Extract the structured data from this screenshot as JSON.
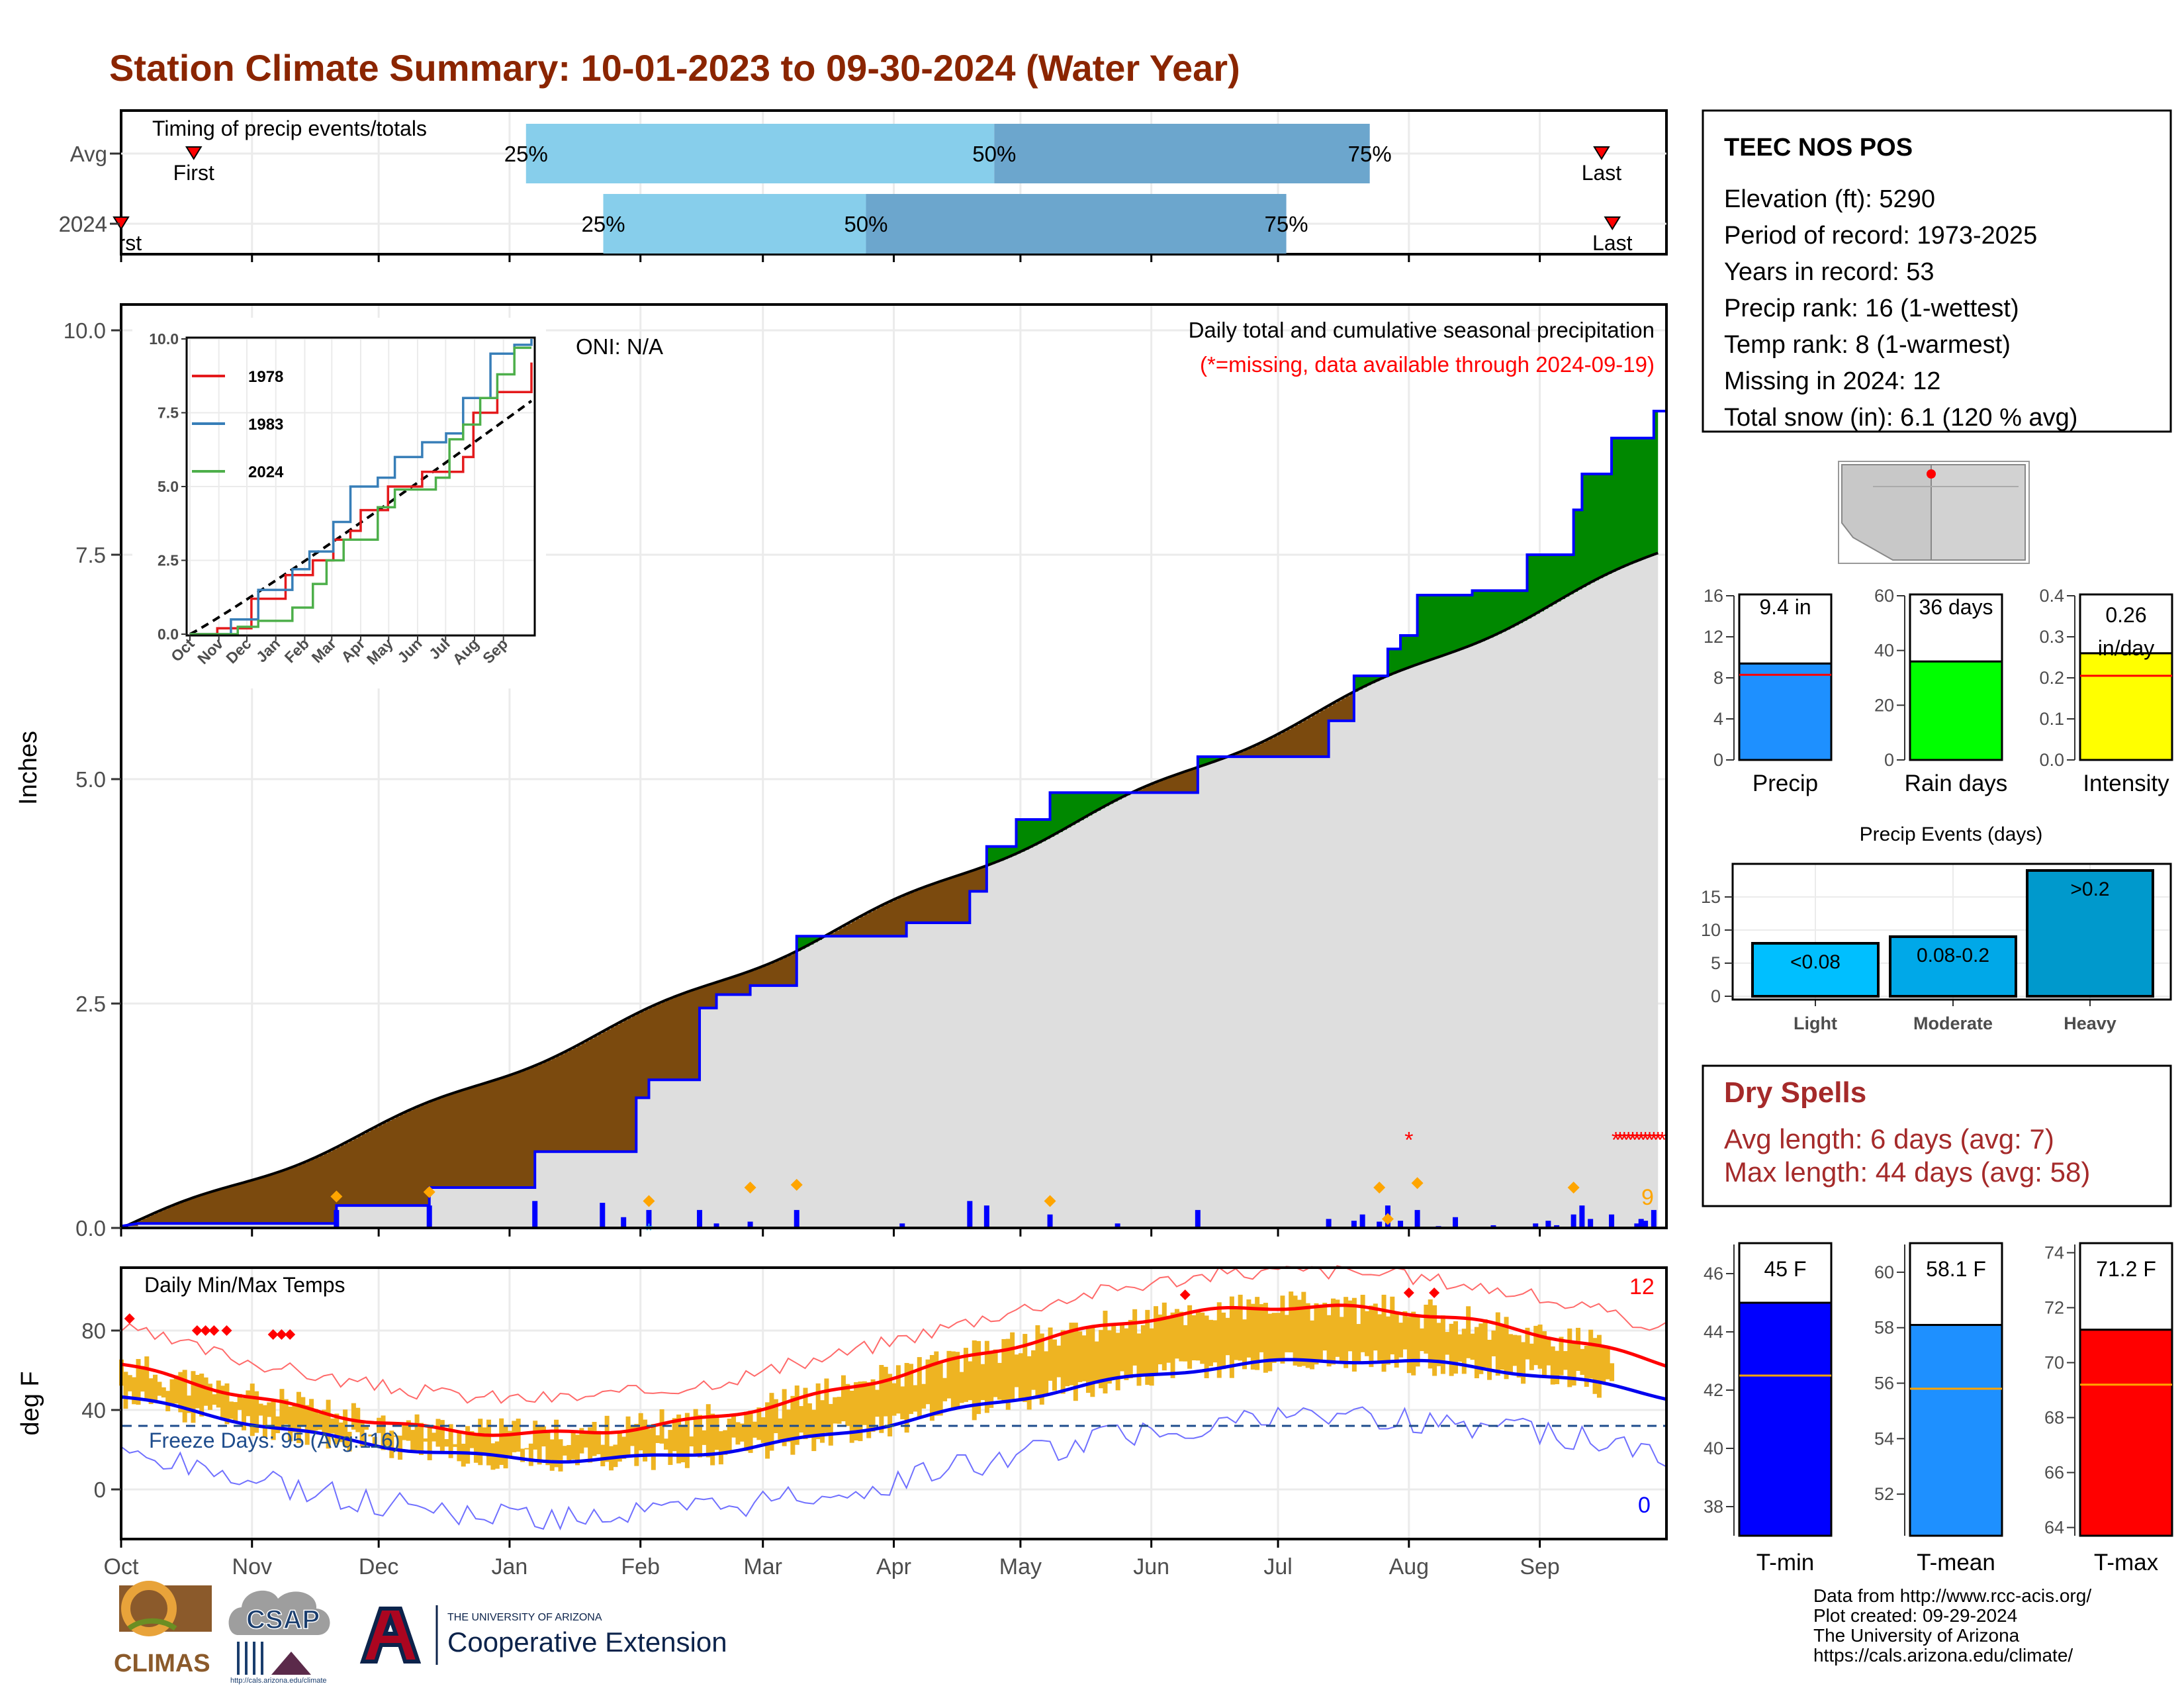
{
  "title": "Station Climate Summary: 10-01-2023 to 09-30-2024 (Water Year)",
  "colors": {
    "title": "#8B2500",
    "dark_red": "#A52A2A",
    "red": "#FF0000",
    "light_blue": "#87CEEB",
    "steel_blue": "#6CA6CD",
    "green": "#008800",
    "brown": "#7B4A0E",
    "gray_fill": "#DEDEDE",
    "blue": "#0000FF",
    "orange": "#FFA500",
    "gold": "#EEB422",
    "navy": "#1E4C8C"
  },
  "timing": {
    "label": "Timing of precip events/totals",
    "rows": [
      {
        "name": "Avg",
        "first_label": "First",
        "last_label": "Last",
        "first": 0.047,
        "p25": 0.262,
        "p50": 0.565,
        "p75": 0.808,
        "last": 0.958,
        "p25_label": "25%",
        "p50_label": "50%",
        "p75_label": "75%"
      },
      {
        "name": "2024",
        "first_label": "First",
        "last_label": "Last",
        "first": 0.0,
        "p25": 0.312,
        "p50": 0.482,
        "p75": 0.754,
        "last": 0.965,
        "p25_label": "25%",
        "p50_label": "50%",
        "p75_label": "75%"
      }
    ]
  },
  "main_chart": {
    "annotation_title": "Daily total and cumulative seasonal precipitation",
    "annotation_missing": "(*=missing, data available through 2024-09-19)",
    "oni": "ONI: N/A",
    "missing_count": "9",
    "ylabel": "Inches",
    "yticks": [
      "0.0",
      "2.5",
      "5.0",
      "7.5",
      "10.0"
    ]
  },
  "temp_chart": {
    "title": "Daily Min/Max Temps",
    "ylabel": "deg F",
    "yticks": [
      "0",
      "40",
      "80"
    ],
    "freeze": "Freeze Days: 95 (Avg:116)",
    "record_high_count": "12",
    "record_low_count": "0"
  },
  "months": [
    "Oct",
    "Nov",
    "Dec",
    "Jan",
    "Feb",
    "Mar",
    "Apr",
    "May",
    "Jun",
    "Jul",
    "Aug",
    "Sep"
  ],
  "station": {
    "name": "TEEC NOS POS",
    "lines": [
      "Elevation (ft): 5290",
      "Period of record: 1973-2025",
      "Years in record: 53",
      "Precip rank: 16 (1-wettest)",
      "Temp rank: 8 (1-warmest)",
      "Missing in 2024: 12",
      "Total snow (in): 6.1 (120 % avg)"
    ]
  },
  "inset": {
    "series": [
      {
        "name": "1978",
        "color": "#E41A1C"
      },
      {
        "name": "1983",
        "color": "#377EB8"
      },
      {
        "name": "2024",
        "color": "#4DAF4A"
      }
    ],
    "yticks": [
      "0.0",
      "2.5",
      "5.0",
      "7.5",
      "10.0"
    ],
    "months": [
      "Oct",
      "Nov",
      "Dec",
      "Jan",
      "Feb",
      "Mar",
      "Apr",
      "May",
      "Jun",
      "Jul",
      "Aug",
      "Sep"
    ]
  },
  "mini_bars": [
    {
      "label": "Precip",
      "value_label": "9.4 in",
      "value": 9.4,
      "avg": 8.3,
      "ymax": 16,
      "ticks": [
        "0",
        "4",
        "8",
        "12",
        "16"
      ],
      "color": "#1E90FF"
    },
    {
      "label": "Rain days",
      "value_label": "36 days",
      "value": 36,
      "avg": 39,
      "ymax": 60,
      "ticks": [
        "0",
        "20",
        "40",
        "60"
      ],
      "color": "#00FF00"
    },
    {
      "label": "Intensity",
      "value_label": "0.26\nin/day",
      "value_line1": "0.26",
      "value_line2": "in/day",
      "value": 0.26,
      "avg": 0.205,
      "ymax": 0.4,
      "ticks": [
        "0.0",
        "0.1",
        "0.2",
        "0.3",
        "0.4"
      ],
      "color": "#FFFF00"
    }
  ],
  "precip_events": {
    "title": "Precip Events (days)",
    "ticks": [
      "0",
      "5",
      "10",
      "15"
    ],
    "bars": [
      {
        "label": "Light",
        "value_label": "<0.08",
        "value": 8,
        "color": "#00BFFF"
      },
      {
        "label": "Moderate",
        "value_label": "0.08-0.2",
        "value": 9,
        "color": "#00A8E8"
      },
      {
        "label": "Heavy",
        "value_label": ">0.2",
        "value": 19,
        "color": "#0099CC"
      }
    ]
  },
  "dry_spells": {
    "title": "Dry Spells",
    "line1": "Avg length: 6 days (avg: 7)",
    "line2": "Max length: 44 days (avg: 58)"
  },
  "temp_bars": [
    {
      "label": "T-min",
      "value_label": "45 F",
      "value": 45,
      "avg": 42.5,
      "ymin": 37,
      "ymax": 47,
      "ticks": [
        "38",
        "40",
        "42",
        "44",
        "46"
      ],
      "color": "#0000FF"
    },
    {
      "label": "T-mean",
      "value_label": "58.1 F",
      "value": 58.1,
      "avg": 55.8,
      "ymin": 50.5,
      "ymax": 61,
      "ticks": [
        "52",
        "54",
        "56",
        "58",
        "60"
      ],
      "color": "#1E90FF"
    },
    {
      "label": "T-max",
      "value_label": "71.2 F",
      "value": 71.2,
      "avg": 69.2,
      "ymin": 63.7,
      "ymax": 74.3,
      "ticks": [
        "64",
        "66",
        "68",
        "70",
        "72",
        "74"
      ],
      "color": "#FF0000"
    }
  ],
  "footer": {
    "lines": [
      "Data from http://www.rcc-acis.org/",
      "Plot created: 09-29-2024",
      "The University of Arizona",
      "https://cals.arizona.edu/climate/"
    ],
    "logo_climas": "CLIMAS",
    "logo_csap": "CSAP",
    "logo_csap_url": "http://cals.arizona.edu/climate",
    "logo_ua_small": "THE UNIVERSITY OF ARIZONA",
    "logo_ua_big": "Cooperative Extension"
  }
}
